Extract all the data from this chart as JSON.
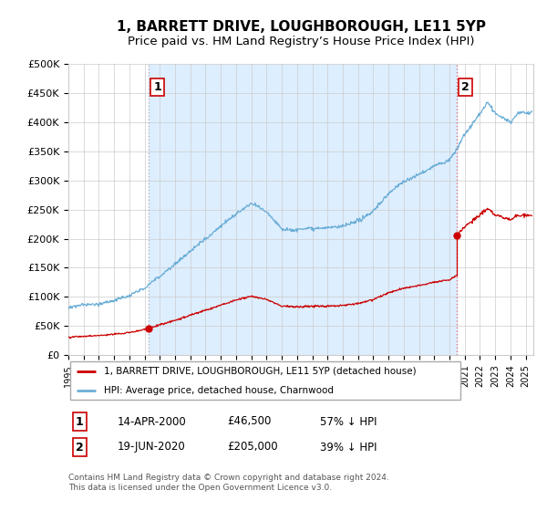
{
  "title": "1, BARRETT DRIVE, LOUGHBOROUGH, LE11 5YP",
  "subtitle": "Price paid vs. HM Land Registry’s House Price Index (HPI)",
  "xlim": [
    1995.0,
    2025.5
  ],
  "ylim": [
    0,
    500000
  ],
  "yticks": [
    0,
    50000,
    100000,
    150000,
    200000,
    250000,
    300000,
    350000,
    400000,
    450000,
    500000
  ],
  "ytick_labels": [
    "£0",
    "£50K",
    "£100K",
    "£150K",
    "£200K",
    "£250K",
    "£300K",
    "£350K",
    "£400K",
    "£450K",
    "£500K"
  ],
  "sale1_x": 2000.28,
  "sale1_y": 46500,
  "sale1_label": "1",
  "sale1_date": "14-APR-2000",
  "sale1_price": "£46,500",
  "sale1_hpi": "57% ↓ HPI",
  "sale2_x": 2020.46,
  "sale2_y": 205000,
  "sale2_label": "2",
  "sale2_date": "19-JUN-2020",
  "sale2_price": "£205,000",
  "sale2_hpi": "39% ↓ HPI",
  "hpi_color": "#6baed6",
  "property_color": "#cc0000",
  "vline_color": "#e07070",
  "vline1_color": "#b0b0b0",
  "marker_color": "#cc0000",
  "background_color": "#ffffff",
  "fill_color": "#ddeeff",
  "grid_color": "#cccccc",
  "legend_property": "1, BARRETT DRIVE, LOUGHBOROUGH, LE11 5YP (detached house)",
  "legend_hpi": "HPI: Average price, detached house, Charnwood",
  "footnote": "Contains HM Land Registry data © Crown copyright and database right 2024.\nThis data is licensed under the Open Government Licence v3.0.",
  "title_fontsize": 11,
  "subtitle_fontsize": 9.5,
  "xtick_years": [
    1995,
    1996,
    1997,
    1998,
    1999,
    2000,
    2001,
    2002,
    2003,
    2004,
    2005,
    2006,
    2007,
    2008,
    2009,
    2010,
    2011,
    2012,
    2013,
    2014,
    2015,
    2016,
    2017,
    2018,
    2019,
    2020,
    2021,
    2022,
    2023,
    2024,
    2025
  ]
}
